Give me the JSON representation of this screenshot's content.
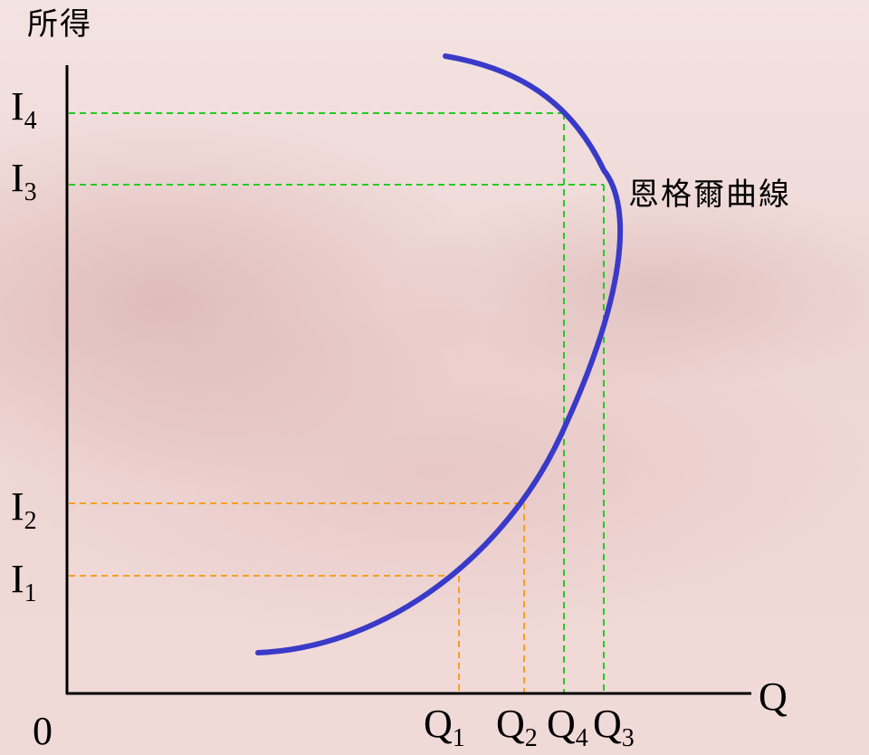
{
  "yaxis_label": "所得",
  "xaxis_label": "Q",
  "origin_label": "0",
  "curve_label": "恩格爾曲線",
  "colors": {
    "curve": "#3a3ac8",
    "guide_orange": "#f5a020",
    "guide_green": "#22cc22",
    "axis": "#000000"
  },
  "income_levels": [
    {
      "main": "I",
      "sub": "4"
    },
    {
      "main": "I",
      "sub": "3"
    },
    {
      "main": "I",
      "sub": "2"
    },
    {
      "main": "I",
      "sub": "1"
    }
  ],
  "quantity_levels": [
    {
      "main": "Q",
      "sub": "1"
    },
    {
      "main": "Q",
      "sub": "2"
    },
    {
      "main": "Q",
      "sub": "4"
    },
    {
      "main": "Q",
      "sub": "3"
    }
  ]
}
